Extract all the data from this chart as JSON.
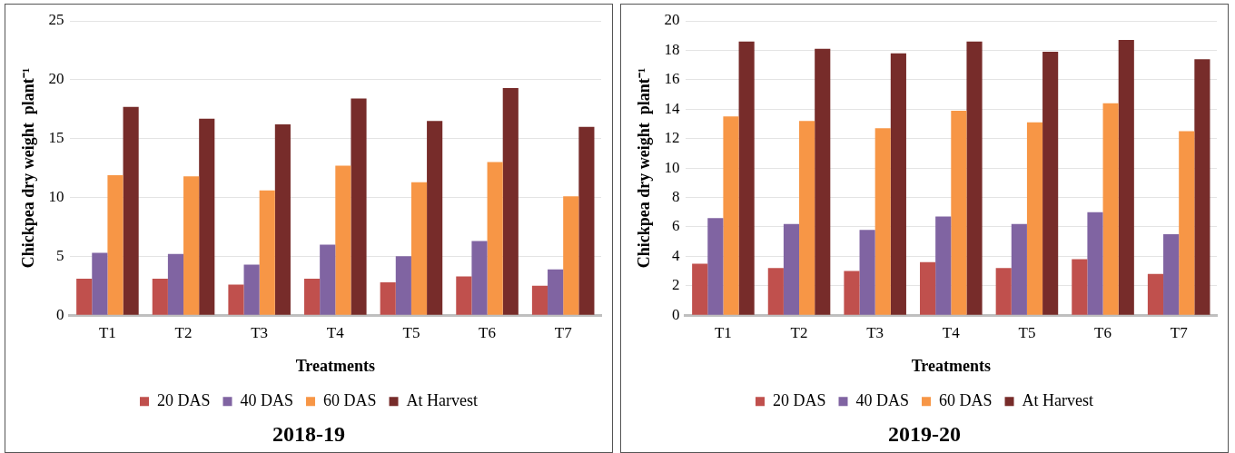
{
  "chart_data": [
    {
      "type": "bar",
      "title": "2018-19",
      "xlabel": "Treatments",
      "ylabel": "Chickpea dry weight  plant⁻¹",
      "categories": [
        "T1",
        "T2",
        "T3",
        "T4",
        "T5",
        "T6",
        "T7"
      ],
      "series": [
        {
          "name": "20 DAS",
          "color": "#c0504d",
          "values": [
            3.1,
            3.1,
            2.6,
            3.1,
            2.8,
            3.3,
            2.5
          ]
        },
        {
          "name": "40 DAS",
          "color": "#8064a2",
          "values": [
            5.3,
            5.2,
            4.3,
            6.0,
            5.0,
            6.3,
            3.9
          ]
        },
        {
          "name": "60 DAS",
          "color": "#f79646",
          "values": [
            11.9,
            11.8,
            10.6,
            12.7,
            11.3,
            13.0,
            10.1
          ]
        },
        {
          "name": "At Harvest",
          "color": "#772c2a",
          "values": [
            17.7,
            16.7,
            16.2,
            18.4,
            16.5,
            19.3,
            16.0
          ]
        }
      ],
      "ylim": [
        0,
        25
      ],
      "yticks": [
        0,
        5,
        10,
        15,
        20,
        25
      ],
      "grid": "y",
      "legend": "bottom"
    },
    {
      "type": "bar",
      "title": "2019-20",
      "xlabel": "Treatments",
      "ylabel": "Chickpea dry weight  plant⁻¹",
      "categories": [
        "T1",
        "T2",
        "T3",
        "T4",
        "T5",
        "T6",
        "T7"
      ],
      "series": [
        {
          "name": "20 DAS",
          "color": "#c0504d",
          "values": [
            3.5,
            3.2,
            3.0,
            3.6,
            3.2,
            3.8,
            2.8
          ]
        },
        {
          "name": "40 DAS",
          "color": "#8064a2",
          "values": [
            6.6,
            6.2,
            5.8,
            6.7,
            6.2,
            7.0,
            5.5
          ]
        },
        {
          "name": "60 DAS",
          "color": "#f79646",
          "values": [
            13.5,
            13.2,
            12.7,
            13.9,
            13.1,
            14.4,
            12.5
          ]
        },
        {
          "name": "At Harvest",
          "color": "#772c2a",
          "values": [
            18.6,
            18.1,
            17.8,
            18.6,
            17.9,
            18.7,
            17.4
          ]
        }
      ],
      "ylim": [
        0,
        20
      ],
      "yticks": [
        0,
        2,
        4,
        6,
        8,
        10,
        12,
        14,
        16,
        18,
        20
      ],
      "grid": "y",
      "legend": "bottom"
    }
  ]
}
